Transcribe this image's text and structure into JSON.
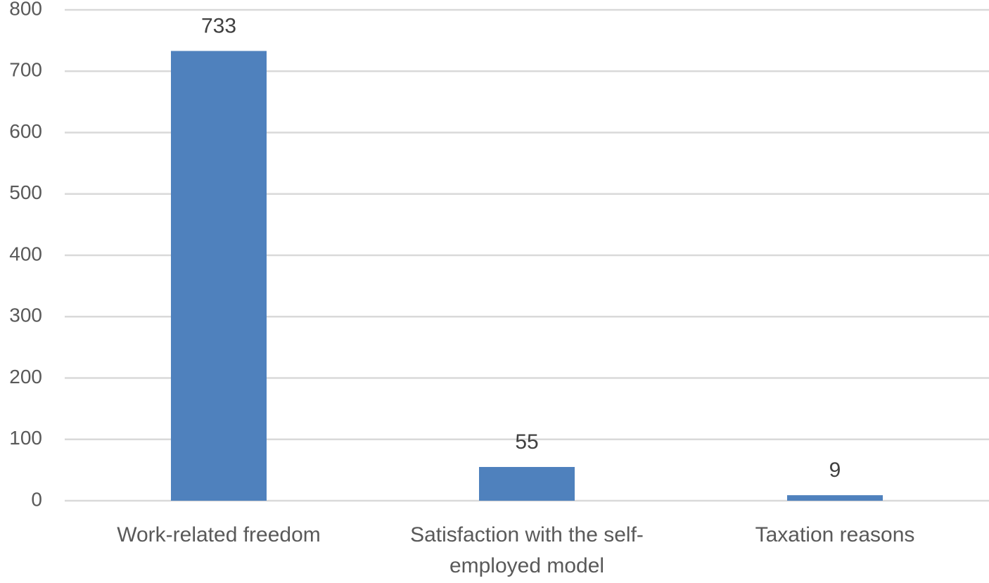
{
  "chart_data": {
    "type": "bar",
    "categories": [
      [
        "Work-related freedom"
      ],
      [
        "Satisfaction with the self-",
        "employed model"
      ],
      [
        "Taxation reasons"
      ]
    ],
    "values": [
      733,
      55,
      9
    ],
    "ylim": [
      0,
      800
    ],
    "yticks": [
      "0",
      "100",
      "200",
      "300",
      "400",
      "500",
      "600",
      "700",
      "800"
    ],
    "grid": true,
    "data_labels": [
      "733",
      "55",
      "9"
    ],
    "bar_color": "#4f81bd",
    "grid_color": "#d9d9d9"
  }
}
